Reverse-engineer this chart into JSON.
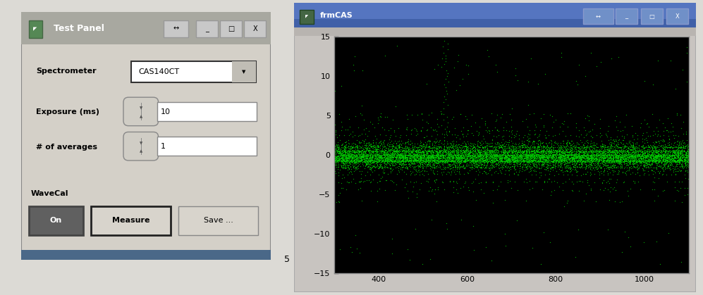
{
  "fig_width": 9.97,
  "fig_height": 4.19,
  "fig_dpi": 100,
  "bg_color": "#dcdad5",
  "left_panel": {
    "title": "Test Panel",
    "title_bg": "#a8a8a0",
    "panel_bg": "#d4d0c8",
    "spectrometer_label": "Spectrometer",
    "spectrometer_value": "CAS140CT",
    "exposure_label": "Exposure (ms)",
    "exposure_value": "10",
    "averages_label": "# of averages",
    "averages_value": "1",
    "wavecal_label": "WaveCal",
    "btn_on": "On",
    "btn_measure": "Measure",
    "btn_save": "Save ..."
  },
  "right_panel": {
    "title": "frmCAS",
    "title_bg_top": "#6080c8",
    "title_bg_bot": "#4060a8",
    "panel_bg": "#c8c8c8",
    "plot_bg": "#000000",
    "plot_color": "#00cc00",
    "xlim": [
      300,
      1100
    ],
    "ylim": [
      -15,
      15
    ],
    "xticks": [
      400,
      600,
      800,
      1000
    ],
    "yticks": [
      -15,
      -10,
      -5,
      0,
      5,
      10,
      15
    ]
  },
  "between_label": "5"
}
